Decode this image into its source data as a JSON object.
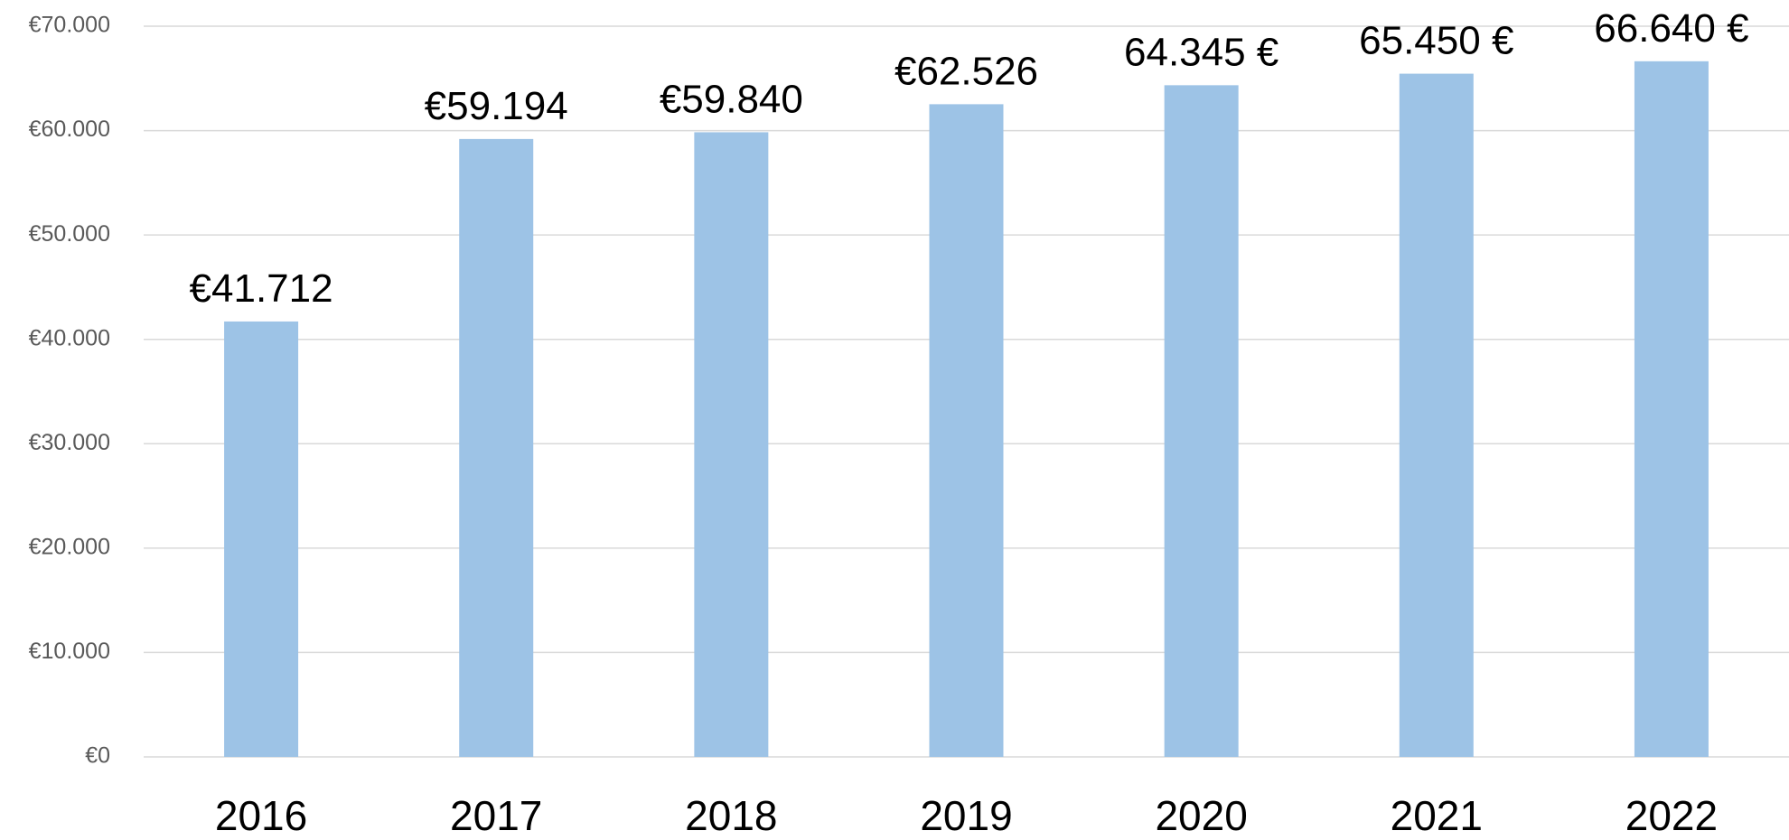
{
  "chart_data": {
    "type": "bar",
    "categories": [
      "2016",
      "2017",
      "2018",
      "2019",
      "2020",
      "2021",
      "2022"
    ],
    "values": [
      41712,
      59194,
      59840,
      62526,
      64345,
      65450,
      66640
    ],
    "value_labels": [
      "€41.712",
      "€59.194",
      "€59.840",
      "€62.526",
      "64.345 €",
      "65.450 €",
      "66.640 €"
    ],
    "color": "#9dc3e6",
    "ylim": [
      0,
      70000
    ],
    "yticks": [
      {
        "value": 0,
        "label": "€0"
      },
      {
        "value": 10000,
        "label": "€10.000"
      },
      {
        "value": 20000,
        "label": "€20.000"
      },
      {
        "value": 30000,
        "label": "€30.000"
      },
      {
        "value": 40000,
        "label": "€40.000"
      },
      {
        "value": 50000,
        "label": "€50.000"
      },
      {
        "value": 60000,
        "label": "€60.000"
      },
      {
        "value": 70000,
        "label": "€70.000"
      }
    ],
    "grid": true
  }
}
